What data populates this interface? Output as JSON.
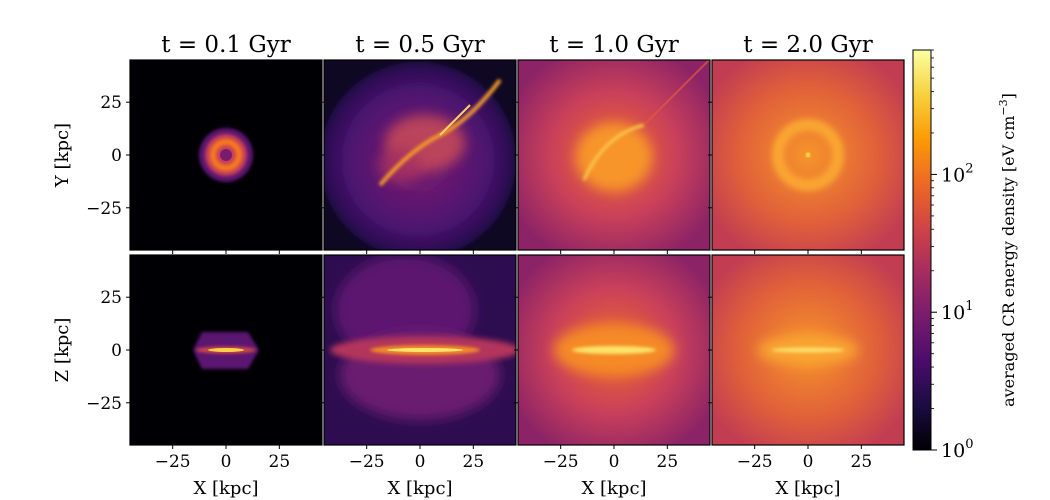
{
  "chart_data": {
    "type": "heatmap",
    "layout": "2x4 panel grid",
    "time_unit": "Gyr",
    "columns": [
      {
        "title": "t = 0.1 Gyr",
        "time": 0.1
      },
      {
        "title": "t = 0.5 Gyr",
        "time": 0.5
      },
      {
        "title": "t = 1.0 Gyr",
        "time": 1.0
      },
      {
        "title": "t = 2.0 Gyr",
        "time": 2.0
      }
    ],
    "rows": [
      {
        "ylabel": "Y [kpc]",
        "projection": "face-on"
      },
      {
        "ylabel": "Z [kpc]",
        "projection": "edge-on"
      }
    ],
    "xlabel": "X [kpc]",
    "xlim": [
      -45,
      45
    ],
    "ylim": [
      -45,
      45
    ],
    "ticks": [
      -25,
      0,
      25
    ],
    "tick_labels": [
      "−25",
      "0",
      "25"
    ],
    "colorbar": {
      "label": "averaged CR energy density [eV cm",
      "label_sup": "−3",
      "label_end": "]",
      "scale": "log",
      "range": [
        1,
        800
      ],
      "ticks": [
        {
          "base": "10",
          "exp": "0",
          "value": 1
        },
        {
          "base": "10",
          "exp": "1",
          "value": 10
        },
        {
          "base": "10",
          "exp": "2",
          "value": 100
        }
      ],
      "colormap": "inferno-like",
      "colors": [
        "#000004",
        "#1b0c41",
        "#4a0c6b",
        "#781c6d",
        "#a52c60",
        "#cf4446",
        "#ed6925",
        "#fb9b06",
        "#f7d13d",
        "#fcffa4"
      ]
    },
    "grid": false,
    "legend": "none"
  }
}
